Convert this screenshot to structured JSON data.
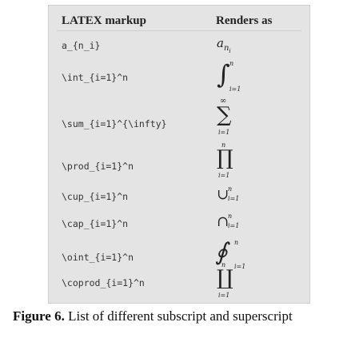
{
  "table": {
    "header_left": "LATEX markup",
    "header_right": "Renders as",
    "rows": [
      {
        "markup": "a_{n_i}",
        "render_main": "a",
        "render_sub": "n",
        "render_subsub": "i"
      },
      {
        "markup": "\\int_{i=1}^n",
        "symbol": "∫",
        "upper": "n",
        "lower": "i=1"
      },
      {
        "markup": "\\sum_{i=1}^{\\infty}",
        "symbol": "∑",
        "upper": "∞",
        "lower": "i=1"
      },
      {
        "markup": "\\prod_{i=1}^n",
        "symbol": "∏",
        "upper": "n",
        "lower": "i=1"
      },
      {
        "markup": "\\cup_{i=1}^n",
        "symbol": "∪",
        "upper": "n",
        "lower": "i=1"
      },
      {
        "markup": "\\cap_{i=1}^n",
        "symbol": "∩",
        "upper": "n",
        "lower": "i=1"
      },
      {
        "markup": "\\oint_{i=1}^n",
        "symbol": "∮",
        "upper": "n",
        "lower": "i=1"
      },
      {
        "markup": "\\coprod_{i=1}^n",
        "symbol": "∐",
        "upper": "n",
        "lower": "i=1"
      }
    ]
  },
  "caption": {
    "label": "Figure 6.",
    "text": " List of different subscript and superscript"
  }
}
